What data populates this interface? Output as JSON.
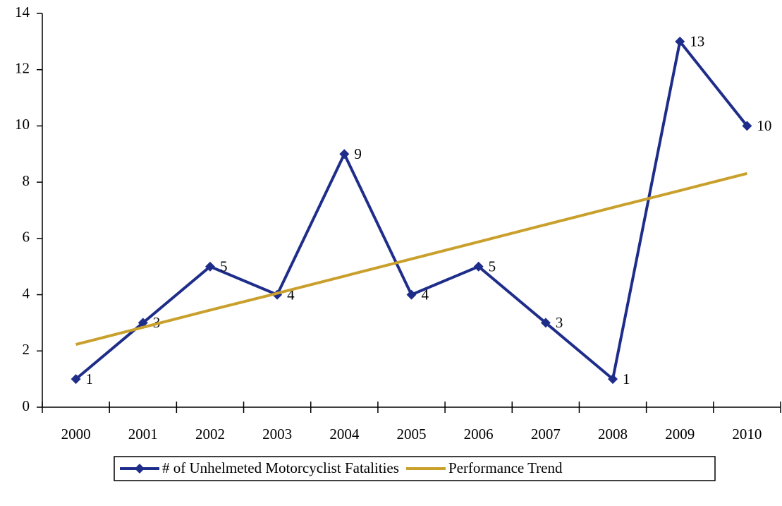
{
  "chart_data": {
    "type": "line",
    "categories": [
      "2000",
      "2001",
      "2002",
      "2003",
      "2004",
      "2005",
      "2006",
      "2007",
      "2008",
      "2009",
      "2010"
    ],
    "series": [
      {
        "name": "# of Unhelmeted Motorcyclist Fatalities",
        "color": "#1f2d8a",
        "values": [
          1,
          3,
          5,
          4,
          9,
          4,
          5,
          3,
          1,
          13,
          10
        ],
        "markers": true,
        "data_labels": true
      },
      {
        "name": "Performance Trend",
        "color": "#c9a02c",
        "values": [
          2.23,
          2.84,
          3.45,
          4.05,
          4.66,
          5.27,
          5.88,
          6.49,
          7.1,
          7.7,
          8.31
        ],
        "markers": false,
        "data_labels": false
      }
    ],
    "ylim": [
      0,
      14
    ],
    "yticks": [
      0,
      2,
      4,
      6,
      8,
      10,
      12,
      14
    ],
    "grid": false,
    "legend": "bottom"
  }
}
